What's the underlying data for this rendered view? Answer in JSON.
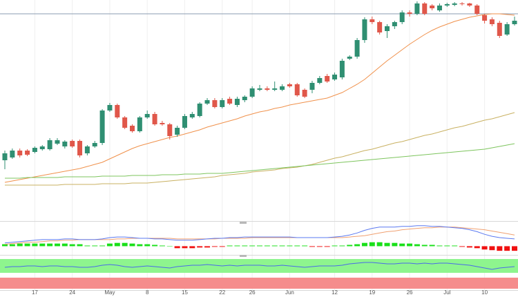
{
  "chart_data": {
    "type": "candlestick",
    "categories": [
      null,
      null,
      null,
      null,
      "17",
      null,
      null,
      null,
      null,
      "24",
      null,
      null,
      null,
      null,
      "May",
      null,
      null,
      null,
      null,
      "8",
      null,
      null,
      null,
      null,
      "15",
      null,
      null,
      null,
      null,
      "22",
      null,
      null,
      null,
      "26",
      null,
      null,
      null,
      null,
      "Jun",
      null,
      null,
      null,
      null,
      null,
      "12",
      null,
      null,
      null,
      null,
      "19",
      null,
      null,
      null,
      null,
      "26",
      null,
      null,
      null,
      null,
      "Jul",
      null,
      null,
      null,
      null,
      "10",
      null,
      null,
      null,
      null
    ],
    "open": [
      88,
      92,
      102,
      102,
      100,
      104,
      104,
      112,
      108,
      116,
      116,
      98,
      108,
      113,
      160,
      168,
      150,
      138,
      130,
      150,
      155,
      142,
      140,
      125,
      135,
      150,
      152,
      170,
      175,
      165,
      177,
      168,
      175,
      180,
      190,
      192,
      190,
      190,
      198,
      198,
      190,
      190,
      200,
      210,
      205,
      208,
      235,
      238,
      262,
      292,
      288,
      275,
      282,
      288,
      302,
      300,
      315,
      312,
      305,
      312,
      313,
      315,
      315,
      312,
      298,
      292,
      287,
      270,
      285
    ],
    "high": [
      102,
      105,
      105,
      104,
      108,
      110,
      120,
      120,
      117,
      118,
      118,
      110,
      116,
      162,
      171,
      170,
      152,
      140,
      152,
      160,
      158,
      145,
      142,
      138,
      155,
      158,
      172,
      178,
      178,
      178,
      180,
      180,
      182,
      195,
      197,
      195,
      202,
      198,
      200,
      200,
      192,
      203,
      210,
      213,
      215,
      235,
      240,
      265,
      295,
      296,
      290,
      285,
      290,
      305,
      305,
      318,
      317,
      314,
      315,
      316,
      317,
      317,
      316,
      314,
      300,
      295,
      290,
      288,
      296
    ],
    "low": [
      75,
      90,
      92,
      94,
      98,
      102,
      102,
      110,
      105,
      106,
      92,
      95,
      106,
      110,
      158,
      148,
      133,
      128,
      128,
      148,
      138,
      138,
      118,
      122,
      133,
      148,
      150,
      168,
      163,
      163,
      168,
      165,
      172,
      178,
      188,
      188,
      188,
      188,
      193,
      180,
      178,
      185,
      198,
      200,
      203,
      205,
      233,
      235,
      258,
      285,
      270,
      265,
      278,
      285,
      296,
      298,
      298,
      305,
      303,
      310,
      311,
      312,
      310,
      298,
      286,
      282,
      265,
      268,
      283
    ],
    "close": [
      98,
      102,
      95,
      96,
      106,
      108,
      117,
      117,
      115,
      108,
      95,
      108,
      113,
      160,
      168,
      150,
      135,
      130,
      150,
      155,
      140,
      140,
      123,
      135,
      152,
      155,
      170,
      175,
      165,
      175,
      170,
      177,
      180,
      192,
      192,
      190,
      192,
      195,
      195,
      182,
      180,
      200,
      207,
      202,
      212,
      232,
      238,
      262,
      292,
      288,
      273,
      282,
      288,
      302,
      300,
      315,
      300,
      308,
      312,
      314,
      315,
      314,
      312,
      300,
      290,
      285,
      268,
      285,
      290
    ],
    "up_color": "#2f8f72",
    "down_color": "#e0574a",
    "ylim": [
      0,
      320
    ],
    "level": 300,
    "level_color": "#8a9bb0",
    "lines": [
      {
        "color": "#f0904a",
        "values": [
          56,
          58,
          60,
          62,
          64,
          66,
          68,
          70,
          72,
          74,
          76,
          79,
          82,
          85,
          90,
          95,
          100,
          105,
          109,
          112,
          115,
          118,
          121,
          123,
          126,
          129,
          132,
          136,
          139,
          142,
          145,
          148,
          152,
          155,
          158,
          160,
          163,
          165,
          168,
          170,
          172,
          174,
          176,
          178,
          182,
          186,
          192,
          198,
          205,
          214,
          223,
          232,
          240,
          248,
          256,
          263,
          270,
          276,
          281,
          285,
          289,
          292,
          295,
          297,
          299,
          300,
          300,
          299,
          298
        ]
      },
      {
        "color": "#c8b060",
        "values": [
          52,
          52,
          52,
          52,
          52,
          52,
          52,
          52,
          53,
          53,
          53,
          53,
          53,
          54,
          54,
          54,
          54,
          55,
          55,
          55,
          56,
          57,
          58,
          59,
          60,
          61,
          62,
          63,
          64,
          66,
          67,
          68,
          69,
          71,
          72,
          73,
          74,
          76,
          77,
          78,
          80,
          82,
          85,
          88,
          91,
          93,
          96,
          99,
          102,
          104,
          107,
          110,
          113,
          115,
          118,
          121,
          124,
          126,
          129,
          132,
          135,
          137,
          140,
          143,
          146,
          148,
          151,
          154,
          157
        ]
      },
      {
        "color": "#7cc45c",
        "values": [
          62,
          62,
          62,
          63,
          63,
          63,
          63,
          63,
          64,
          64,
          64,
          64,
          64,
          65,
          65,
          65,
          65,
          66,
          66,
          66,
          66,
          67,
          67,
          67,
          68,
          68,
          68,
          69,
          69,
          69,
          70,
          71,
          72,
          73,
          74,
          75,
          76,
          77,
          78,
          79,
          80,
          81,
          82,
          83,
          84,
          85,
          86,
          87,
          88,
          89,
          90,
          91,
          92,
          93,
          94,
          95,
          96,
          97,
          98,
          99,
          100,
          101,
          102,
          103,
          104,
          106,
          108,
          110,
          112
        ]
      }
    ],
    "macd": {
      "ylim": [
        -10,
        35
      ],
      "hist_up_color": "#19e019",
      "hist_down_color": "#f01010",
      "hist": [
        3,
        3,
        4,
        4,
        4,
        4,
        4,
        4,
        4,
        3,
        3,
        1,
        1,
        1,
        4,
        5,
        5,
        4,
        3,
        3,
        2,
        1,
        0,
        -3,
        -3,
        -3,
        -2,
        -2,
        -1,
        -1,
        1,
        1,
        1,
        1,
        1,
        1,
        1,
        1,
        1,
        1,
        1,
        -1,
        -1,
        -1,
        1,
        1,
        2,
        3,
        5,
        6,
        6,
        5,
        5,
        4,
        4,
        3,
        2,
        2,
        1,
        1,
        1,
        -1,
        -2,
        -3,
        -5,
        -6,
        -7,
        -7,
        -7
      ],
      "macd_line": {
        "color": "#5a78f0",
        "values": [
          5,
          6,
          7,
          8,
          9,
          10,
          10,
          10,
          11,
          11,
          10,
          10,
          10,
          11,
          13,
          14,
          14,
          13,
          12,
          12,
          11,
          11,
          10,
          9,
          9,
          9,
          10,
          11,
          12,
          12,
          13,
          13,
          14,
          14,
          14,
          14,
          14,
          14,
          14,
          13,
          13,
          13,
          13,
          13,
          14,
          15,
          17,
          20,
          24,
          27,
          29,
          29,
          29,
          30,
          30,
          31,
          31,
          30,
          30,
          29,
          28,
          27,
          25,
          22,
          18,
          15,
          13,
          12,
          11
        ]
      },
      "signal_line": {
        "color": "#f0a070",
        "values": [
          3,
          4,
          5,
          6,
          6,
          7,
          8,
          8,
          9,
          9,
          10,
          10,
          10,
          10,
          10,
          11,
          11,
          12,
          12,
          12,
          12,
          12,
          12,
          11,
          11,
          11,
          11,
          11,
          11,
          12,
          12,
          12,
          12,
          13,
          13,
          13,
          13,
          13,
          13,
          13,
          13,
          13,
          13,
          13,
          13,
          13,
          14,
          15,
          16,
          18,
          20,
          22,
          23,
          25,
          26,
          27,
          28,
          28,
          29,
          29,
          29,
          28,
          27,
          26,
          25,
          23,
          21,
          19,
          17
        ]
      }
    },
    "rsi": {
      "ylim": [
        0,
        30
      ],
      "color": "#4a6ae8",
      "values": [
        13,
        14,
        14,
        15,
        15,
        14,
        15,
        15,
        14,
        14,
        13,
        13,
        14,
        16,
        17,
        16,
        14,
        13,
        14,
        15,
        14,
        13,
        12,
        14,
        15,
        16,
        16,
        17,
        16,
        15,
        16,
        15,
        16,
        16,
        16,
        15,
        15,
        16,
        15,
        14,
        13,
        14,
        15,
        15,
        15,
        16,
        18,
        19,
        20,
        20,
        19,
        18,
        18,
        19,
        19,
        18,
        19,
        18,
        19,
        19,
        18,
        17,
        16,
        14,
        12,
        10,
        12,
        13,
        14
      ]
    }
  }
}
